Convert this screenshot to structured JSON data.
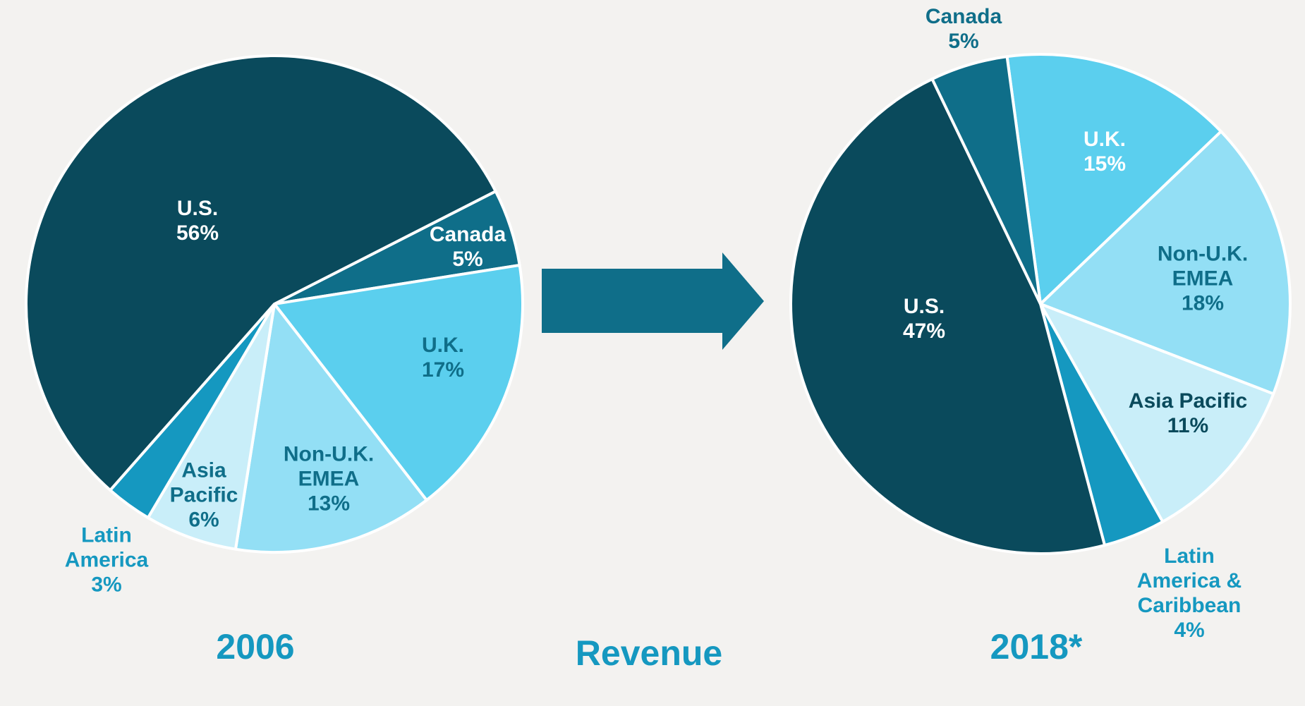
{
  "title": "Revenue",
  "chart_data": [
    {
      "type": "pie",
      "title": "2006",
      "categories": [
        "Canada",
        "U.K.",
        "Non-U.K. EMEA",
        "Asia Pacific",
        "Latin America",
        "U.S."
      ],
      "values": [
        5,
        17,
        13,
        6,
        3,
        56
      ],
      "value_labels": [
        "5%",
        "17%",
        "13%",
        "6%",
        "3%",
        "56%"
      ],
      "colors": [
        "#0f6e89",
        "#5bcfee",
        "#93dff5",
        "#c9eef9",
        "#1598c0",
        "#0a4a5c"
      ]
    },
    {
      "type": "pie",
      "title": "2018*",
      "categories": [
        "U.K.",
        "Non-U.K. EMEA",
        "Asia Pacific",
        "Latin America & Caribbean",
        "U.S.",
        "Canada"
      ],
      "values": [
        15,
        18,
        11,
        4,
        47,
        5
      ],
      "value_labels": [
        "15%",
        "18%",
        "11%",
        "4%",
        "47%",
        "5%"
      ],
      "colors": [
        "#5bcfee",
        "#93dff5",
        "#c9eef9",
        "#1598c0",
        "#0a4a5c",
        "#0f6e89"
      ]
    }
  ]
}
